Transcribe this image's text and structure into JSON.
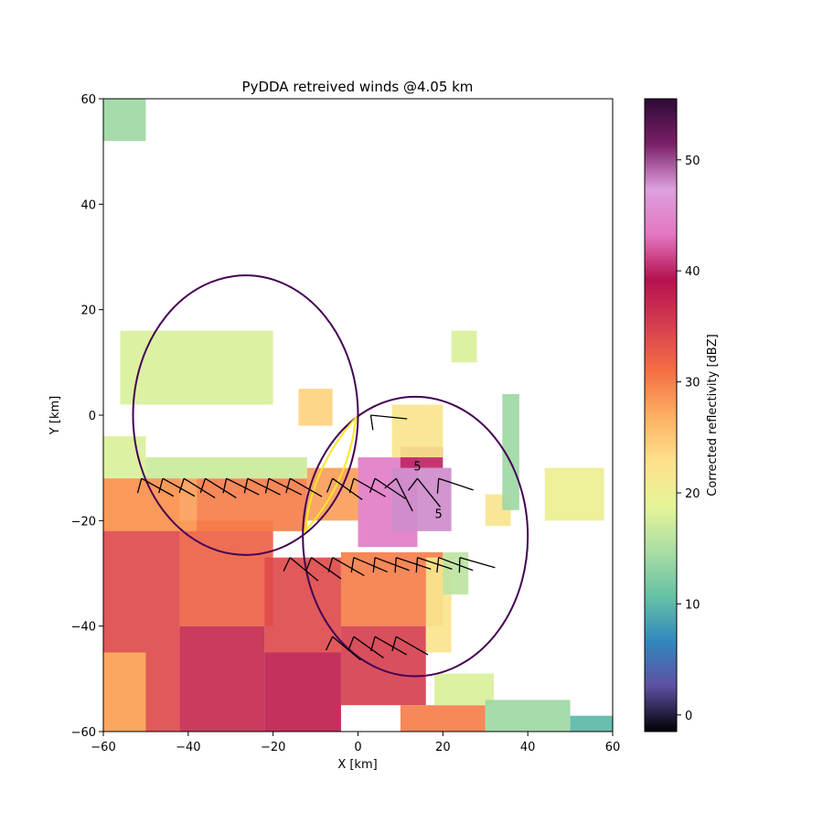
{
  "chart_data": {
    "type": "heatmap",
    "title": "PyDDA retreived winds @4.05 km",
    "xlabel": "X [km]",
    "ylabel": "Y [km]",
    "xlim": [
      -60,
      60
    ],
    "ylim": [
      -60,
      60
    ],
    "x_ticks": [
      -60,
      -40,
      -20,
      0,
      20,
      40,
      60
    ],
    "y_ticks": [
      -60,
      -40,
      -20,
      0,
      20,
      40,
      60
    ],
    "colorbar": {
      "label": "Corrected reflectivity [dBZ]",
      "range": [
        -1.5,
        55.5
      ],
      "ticks": [
        0,
        10,
        20,
        30,
        40,
        50
      ],
      "colormap": "spectral_r",
      "stops": [
        "#000004",
        "#5e4fa2",
        "#3288bd",
        "#66c2a5",
        "#abdda4",
        "#e6f598",
        "#fee08b",
        "#fdae61",
        "#f46d43",
        "#d53e4f",
        "#b5124f",
        "#e377c2",
        "#dda0dd",
        "#7b1f68",
        "#2d0a35"
      ]
    },
    "lobes": [
      {
        "name": "lobe-upper-left",
        "cx": -26.5,
        "cy": 0,
        "rx": 26.5,
        "ry": 26.5,
        "color": "#440154"
      },
      {
        "name": "lobe-lower-right",
        "cx": 13.5,
        "cy": -23,
        "rx": 26.5,
        "ry": 26.5,
        "color": "#440154"
      }
    ],
    "beam_lens": {
      "from": [
        -12.5,
        -22
      ],
      "to": [
        -0.5,
        -0.5
      ],
      "color": "#fde725"
    },
    "contours": [
      {
        "label": "5",
        "at": [
          14,
          -10.5
        ]
      },
      {
        "label": "5",
        "at": [
          19,
          -19.5
        ]
      }
    ],
    "barbs": [
      {
        "x": -51,
        "y": -12,
        "u": 9,
        "v": -5
      },
      {
        "x": -46,
        "y": -12,
        "u": 9,
        "v": -5
      },
      {
        "x": -41,
        "y": -12,
        "u": 8,
        "v": -5
      },
      {
        "x": -36,
        "y": -12,
        "u": 8,
        "v": -5
      },
      {
        "x": -31,
        "y": -12,
        "u": 8,
        "v": -4
      },
      {
        "x": -26,
        "y": -12,
        "u": 8,
        "v": -4
      },
      {
        "x": -21,
        "y": -12,
        "u": 8,
        "v": -4
      },
      {
        "x": -16,
        "y": -12,
        "u": 7,
        "v": -4
      },
      {
        "x": -6,
        "y": -12,
        "u": 7,
        "v": -5
      },
      {
        "x": -1,
        "y": -12,
        "u": 7,
        "v": -4
      },
      {
        "x": 4,
        "y": -12,
        "u": 6,
        "v": -4
      },
      {
        "x": 9,
        "y": -12,
        "u": 3,
        "v": -6
      },
      {
        "x": 14,
        "y": -12,
        "u": 4,
        "v": -5
      },
      {
        "x": 19,
        "y": -12,
        "u": 6,
        "v": -2
      },
      {
        "x": 3,
        "y": 0,
        "u": 10,
        "v": -1
      },
      {
        "x": -16,
        "y": -27,
        "u": 6,
        "v": -5
      },
      {
        "x": -11,
        "y": -27,
        "u": 7,
        "v": -5
      },
      {
        "x": -6,
        "y": -27,
        "u": 7,
        "v": -4
      },
      {
        "x": -1,
        "y": -27,
        "u": 7,
        "v": -3
      },
      {
        "x": 4,
        "y": -27,
        "u": 8,
        "v": -3
      },
      {
        "x": 9,
        "y": -27,
        "u": 9,
        "v": -3
      },
      {
        "x": 14,
        "y": -27,
        "u": 9,
        "v": -3
      },
      {
        "x": 19,
        "y": -27,
        "u": 8,
        "v": -3
      },
      {
        "x": 24,
        "y": -27,
        "u": 7,
        "v": -2
      },
      {
        "x": -6,
        "y": -42,
        "u": 6,
        "v": -5
      },
      {
        "x": -1,
        "y": -42,
        "u": 7,
        "v": -5
      },
      {
        "x": 4,
        "y": -42,
        "u": 7,
        "v": -4
      },
      {
        "x": 9,
        "y": -42,
        "u": 7,
        "v": -4
      }
    ],
    "reflectivity_regions": [
      {
        "x": -60,
        "y": -60,
        "w": 18,
        "h": 48,
        "dbz": 34
      },
      {
        "x": -42,
        "y": -60,
        "w": 20,
        "h": 20,
        "dbz": 37
      },
      {
        "x": -42,
        "y": -40,
        "w": 22,
        "h": 20,
        "dbz": 32
      },
      {
        "x": -22,
        "y": -60,
        "w": 18,
        "h": 15,
        "dbz": 38
      },
      {
        "x": -22,
        "y": -45,
        "w": 18,
        "h": 18,
        "dbz": 34
      },
      {
        "x": -60,
        "y": -60,
        "w": 10,
        "h": 15,
        "dbz": 27
      },
      {
        "x": -60,
        "y": -22,
        "w": 22,
        "h": 10,
        "dbz": 28
      },
      {
        "x": -38,
        "y": -22,
        "w": 26,
        "h": 10,
        "dbz": 30
      },
      {
        "x": -60,
        "y": -12,
        "w": 10,
        "h": 8,
        "dbz": 18
      },
      {
        "x": -50,
        "y": -12,
        "w": 38,
        "h": 4,
        "dbz": 17
      },
      {
        "x": -12,
        "y": -20,
        "w": 12,
        "h": 10,
        "dbz": 28
      },
      {
        "x": 0,
        "y": -25,
        "w": 14,
        "h": 17,
        "dbz": 44
      },
      {
        "x": 8,
        "y": -22,
        "w": 14,
        "h": 12,
        "dbz": 48
      },
      {
        "x": 10,
        "y": -10,
        "w": 10,
        "h": 4,
        "dbz": 40
      },
      {
        "x": -4,
        "y": -40,
        "w": 24,
        "h": 14,
        "dbz": 30
      },
      {
        "x": -4,
        "y": -55,
        "w": 20,
        "h": 15,
        "dbz": 35
      },
      {
        "x": 16,
        "y": -45,
        "w": 6,
        "h": 18,
        "dbz": 22
      },
      {
        "x": 20,
        "y": -34,
        "w": 6,
        "h": 8,
        "dbz": 16
      },
      {
        "x": 10,
        "y": -60,
        "w": 20,
        "h": 5,
        "dbz": 30
      },
      {
        "x": 18,
        "y": -55,
        "w": 14,
        "h": 6,
        "dbz": 18
      },
      {
        "x": 30,
        "y": -60,
        "w": 20,
        "h": 6,
        "dbz": 14
      },
      {
        "x": 50,
        "y": -60,
        "w": 10,
        "h": 3,
        "dbz": 10
      },
      {
        "x": 44,
        "y": -20,
        "w": 14,
        "h": 10,
        "dbz": 20
      },
      {
        "x": 30,
        "y": -21,
        "w": 6,
        "h": 6,
        "dbz": 22
      },
      {
        "x": -60,
        "y": 52,
        "w": 10,
        "h": 8,
        "dbz": 14
      },
      {
        "x": -56,
        "y": 2,
        "w": 36,
        "h": 14,
        "dbz": 18
      },
      {
        "x": -14,
        "y": -2,
        "w": 8,
        "h": 7,
        "dbz": 24
      },
      {
        "x": 8,
        "y": -8,
        "w": 12,
        "h": 10,
        "dbz": 22
      },
      {
        "x": 22,
        "y": 10,
        "w": 6,
        "h": 6,
        "dbz": 18
      },
      {
        "x": 34,
        "y": -18,
        "w": 4,
        "h": 22,
        "dbz": 14
      }
    ]
  }
}
